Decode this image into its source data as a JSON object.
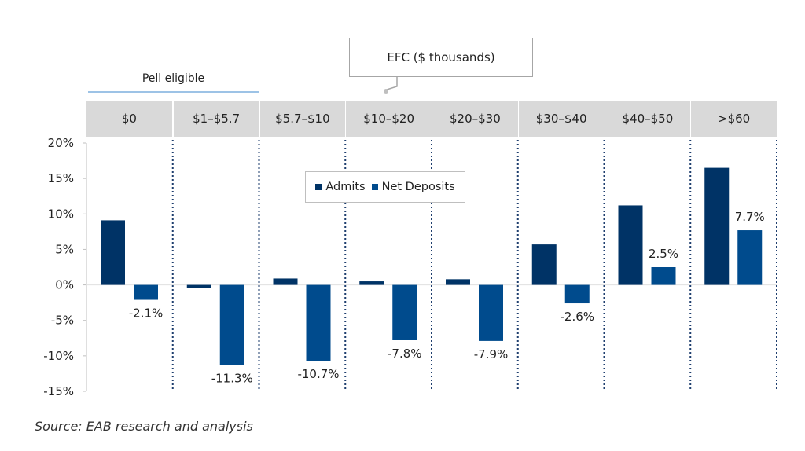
{
  "callout": {
    "label": "EFC ($ thousands)"
  },
  "pell": {
    "label": "Pell eligible"
  },
  "source": "Source: EAB research and analysis",
  "colors": {
    "admits": "#003366",
    "net_deposits": "#004b8d",
    "header_bg": "#d9d9d9",
    "pell_line": "#9dc3e6",
    "divider": "#1f3f6f"
  },
  "chart_data": {
    "type": "bar",
    "categories": [
      "$0",
      "$1–$5.7",
      "$5.7–$10",
      "$10–$20",
      "$20–$30",
      "$30–$40",
      "$40–$50",
      ">$60"
    ],
    "series": [
      {
        "name": "Admits",
        "values": [
          9.1,
          -0.4,
          0.9,
          0.5,
          0.8,
          5.7,
          11.2,
          16.5
        ]
      },
      {
        "name": "Net Deposits",
        "values": [
          -2.1,
          -11.3,
          -10.7,
          -7.8,
          -7.9,
          -2.6,
          2.5,
          7.7
        ]
      }
    ],
    "data_labels": [
      "-2.1%",
      "-11.3%",
      "-10.7%",
      "-7.8%",
      "-7.9%",
      "-2.6%",
      "2.5%",
      "7.7%"
    ],
    "y_ticks": [
      20,
      15,
      10,
      5,
      0,
      -5,
      -10,
      -15
    ],
    "y_tick_labels": [
      "20%",
      "15%",
      "10%",
      "5%",
      "0%",
      "-5%",
      "-10%",
      "-15%"
    ],
    "ylim": [
      -15,
      20
    ],
    "xlabel": "EFC ($ thousands)",
    "ylabel": "",
    "legend": [
      "Admits",
      "Net Deposits"
    ],
    "legend_position": "top-center"
  }
}
